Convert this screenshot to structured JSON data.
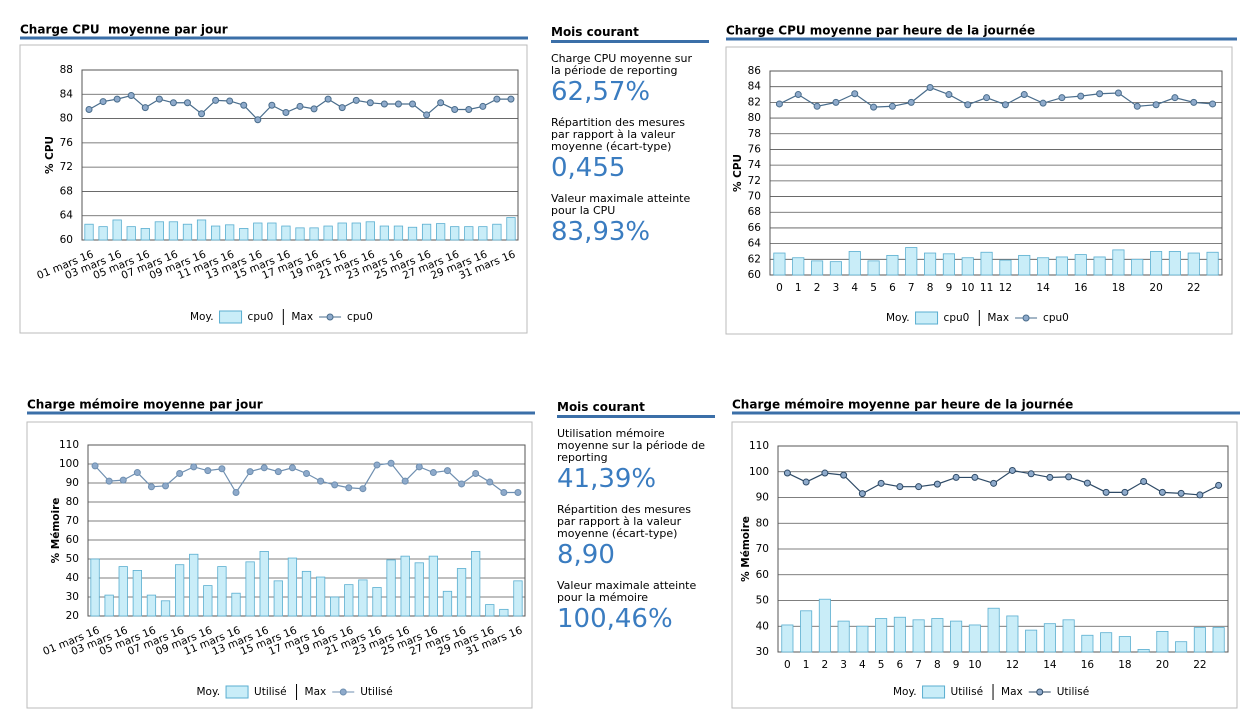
{
  "chart_data": [
    {
      "type": "bar-line",
      "title": "Charge CPU  moyenne par jour",
      "y_label": "% CPU",
      "categories": [
        "01 mars 16",
        null,
        "03 mars 16",
        null,
        "05 mars 16",
        null,
        "07 mars 16",
        null,
        "09 mars 16",
        null,
        "11 mars 16",
        null,
        "13 mars 16",
        null,
        "15 mars 16",
        null,
        "17 mars 16",
        null,
        "19 mars 16",
        null,
        "21 mars 16",
        null,
        "23 mars 16",
        null,
        "25 mars 16",
        null,
        "27 mars 16",
        null,
        "29 mars 16",
        null,
        "31 mars 16"
      ],
      "ylim": [
        60,
        88
      ],
      "yticks": [
        60,
        64,
        68,
        72,
        76,
        80,
        84,
        88
      ],
      "grid": true,
      "series": [
        {
          "group": "Moy.",
          "name": "cpu0",
          "kind": "bar",
          "color": "#c9edf8",
          "values": [
            62.6,
            62.2,
            63.3,
            62.2,
            61.9,
            63.0,
            63.0,
            62.6,
            63.3,
            62.3,
            62.5,
            61.9,
            62.8,
            62.8,
            62.3,
            62.0,
            62.0,
            62.3,
            62.8,
            62.8,
            63.0,
            62.3,
            62.3,
            62.1,
            62.6,
            62.7,
            62.2,
            62.2,
            62.2,
            62.6,
            63.7
          ]
        },
        {
          "group": "Max",
          "name": "cpu0",
          "kind": "line",
          "color": "#4a6d8c",
          "values": [
            81.5,
            82.8,
            83.2,
            83.8,
            81.8,
            83.2,
            82.6,
            82.6,
            80.8,
            83.0,
            82.9,
            82.2,
            79.8,
            82.2,
            81.0,
            82.0,
            81.6,
            83.2,
            81.8,
            83.0,
            82.6,
            82.4,
            82.4,
            82.4,
            80.6,
            82.6,
            81.5,
            81.5,
            82.0,
            83.2,
            83.2
          ]
        }
      ]
    },
    {
      "type": "bar-line",
      "title": "Charge CPU moyenne par heure de la journée",
      "y_label": "% CPU",
      "categories": [
        0,
        1,
        2,
        3,
        4,
        5,
        6,
        7,
        8,
        9,
        10,
        11,
        12,
        null,
        14,
        null,
        16,
        null,
        18,
        null,
        20,
        null,
        22,
        null
      ],
      "ylim": [
        60,
        86
      ],
      "yticks": [
        60,
        62,
        64,
        66,
        68,
        70,
        72,
        74,
        76,
        78,
        80,
        82,
        84,
        86
      ],
      "grid": true,
      "series": [
        {
          "group": "Moy.",
          "name": "cpu0",
          "kind": "bar",
          "color": "#c9edf8",
          "values": [
            62.8,
            62.2,
            61.8,
            61.7,
            63.0,
            61.8,
            62.5,
            63.5,
            62.8,
            62.7,
            62.2,
            62.9,
            61.9,
            62.5,
            62.2,
            62.3,
            62.6,
            62.3,
            63.2,
            62.0,
            63.0,
            63.0,
            62.8,
            62.9
          ]
        },
        {
          "group": "Max",
          "name": "cpu0",
          "kind": "line",
          "color": "#4a6d8c",
          "values": [
            81.8,
            83.0,
            81.5,
            82.0,
            83.1,
            81.4,
            81.5,
            82.0,
            83.9,
            83.0,
            81.7,
            82.6,
            81.7,
            83.0,
            81.9,
            82.6,
            82.8,
            83.1,
            83.2,
            81.5,
            81.7,
            82.6,
            82.0,
            81.8
          ]
        }
      ]
    },
    {
      "type": "bar-line",
      "title": "Charge mémoire moyenne par jour",
      "y_label": "% Mémoire",
      "categories": [
        "01 mars 16",
        null,
        "03 mars 16",
        null,
        "05 mars 16",
        null,
        "07 mars 16",
        null,
        "09 mars 16",
        null,
        "11 mars 16",
        null,
        "13 mars 16",
        null,
        "15 mars 16",
        null,
        "17 mars 16",
        null,
        "19 mars 16",
        null,
        "21 mars 16",
        null,
        "23 mars 16",
        null,
        "25 mars 16",
        null,
        "27 mars 16",
        null,
        "29 mars 16",
        null,
        "31 mars 16"
      ],
      "ylim": [
        20,
        110
      ],
      "yticks": [
        20,
        30,
        40,
        50,
        60,
        70,
        80,
        90,
        100,
        110
      ],
      "grid": true,
      "series": [
        {
          "group": "Moy.",
          "name": "Utilisé",
          "kind": "bar",
          "color": "#c9edf8",
          "values": [
            50,
            31,
            46,
            44,
            31,
            28,
            47,
            52.5,
            36,
            46,
            32,
            48.5,
            54,
            38.5,
            50.5,
            43.5,
            40.5,
            30,
            36.5,
            39,
            35,
            49.5,
            51.5,
            48,
            51.5,
            33,
            45,
            54,
            26,
            23.5,
            38.5
          ]
        },
        {
          "group": "Max",
          "name": "Utilisé",
          "kind": "line",
          "color": "#6f8fb0",
          "values": [
            99,
            91,
            91.5,
            95.5,
            88,
            88.5,
            95,
            98.5,
            96.5,
            97.5,
            85,
            96,
            98,
            96,
            98,
            95,
            91,
            89,
            87.5,
            87,
            99.5,
            100.4,
            91,
            98.5,
            95.5,
            96.5,
            89.5,
            95,
            90.5,
            85,
            85
          ]
        }
      ]
    },
    {
      "type": "bar-line",
      "title": "Charge mémoire moyenne par heure de la journée",
      "y_label": "% Mémoire",
      "categories": [
        0,
        1,
        2,
        3,
        4,
        5,
        6,
        7,
        8,
        9,
        10,
        null,
        12,
        null,
        14,
        null,
        16,
        null,
        18,
        null,
        20,
        null,
        22,
        null
      ],
      "ylim": [
        30,
        110
      ],
      "yticks": [
        30,
        40,
        50,
        60,
        70,
        80,
        90,
        100,
        110
      ],
      "grid": true,
      "series": [
        {
          "group": "Moy.",
          "name": "Utilisé",
          "kind": "bar",
          "color": "#c9edf8",
          "values": [
            40.5,
            46,
            50.5,
            42,
            40,
            43,
            43.5,
            42.5,
            43,
            42,
            40.5,
            47,
            44,
            38.5,
            41,
            42.5,
            36.5,
            37.5,
            36,
            31,
            38,
            34,
            39.5,
            39.5
          ]
        },
        {
          "group": "Max",
          "name": "Utilisé",
          "kind": "line",
          "color": "#2e4a66",
          "values": [
            99.5,
            96,
            99.5,
            98.7,
            91.5,
            95.5,
            94.2,
            94.2,
            95.2,
            97.8,
            97.8,
            95.5,
            100.5,
            99.2,
            97.8,
            98,
            95.6,
            92,
            92,
            96.2,
            92,
            91.6,
            91,
            94.7
          ]
        }
      ]
    }
  ],
  "summaries": [
    {
      "title": "Mois courant",
      "items": [
        {
          "label": "Charge CPU moyenne sur la période de reporting",
          "value": "62,57%"
        },
        {
          "label": "Répartition des mesures par rapport à la valeur moyenne (écart-type)",
          "value": "0,455"
        },
        {
          "label": "Valeur maximale atteinte pour la CPU",
          "value": "83,93%"
        }
      ]
    },
    {
      "title": "Mois courant",
      "items": [
        {
          "label": "Utilisation mémoire moyenne sur la période de reporting",
          "value": "41,39%"
        },
        {
          "label": "Répartition des mesures par rapport à la valeur moyenne (écart-type)",
          "value": "8,90"
        },
        {
          "label": "Valeur maximale atteinte pour la mémoire",
          "value": "100,46%"
        }
      ]
    }
  ]
}
